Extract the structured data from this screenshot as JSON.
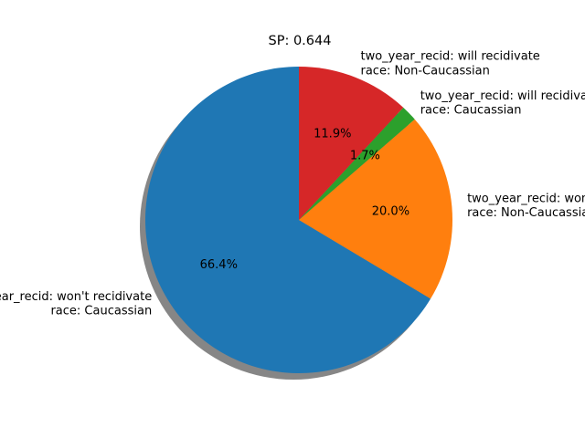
{
  "chart_data": {
    "type": "pie",
    "title": "SP: 0.644",
    "slices": [
      {
        "label_line1": "two_year_recid: won't recidivate",
        "label_line2": "race: Caucassian",
        "value": 66.4,
        "pct_label": "66.4%",
        "color": "#1f77b4"
      },
      {
        "label_line1": "two_year_recid: won't recidivate",
        "label_line2": "race: Non-Caucassian",
        "value": 20.0,
        "pct_label": "20.0%",
        "color": "#ff7f0e"
      },
      {
        "label_line1": "two_year_recid: will recidivate",
        "label_line2": "race: Caucassian",
        "value": 1.7,
        "pct_label": "1.7%",
        "color": "#2ca02c"
      },
      {
        "label_line1": "two_year_recid: will recidivate",
        "label_line2": "race: Non-Caucassian",
        "value": 11.9,
        "pct_label": "11.9%",
        "color": "#d62728"
      }
    ],
    "start_angle_deg": 90,
    "direction": "counterclockwise",
    "shadow": true,
    "legend": "none"
  }
}
